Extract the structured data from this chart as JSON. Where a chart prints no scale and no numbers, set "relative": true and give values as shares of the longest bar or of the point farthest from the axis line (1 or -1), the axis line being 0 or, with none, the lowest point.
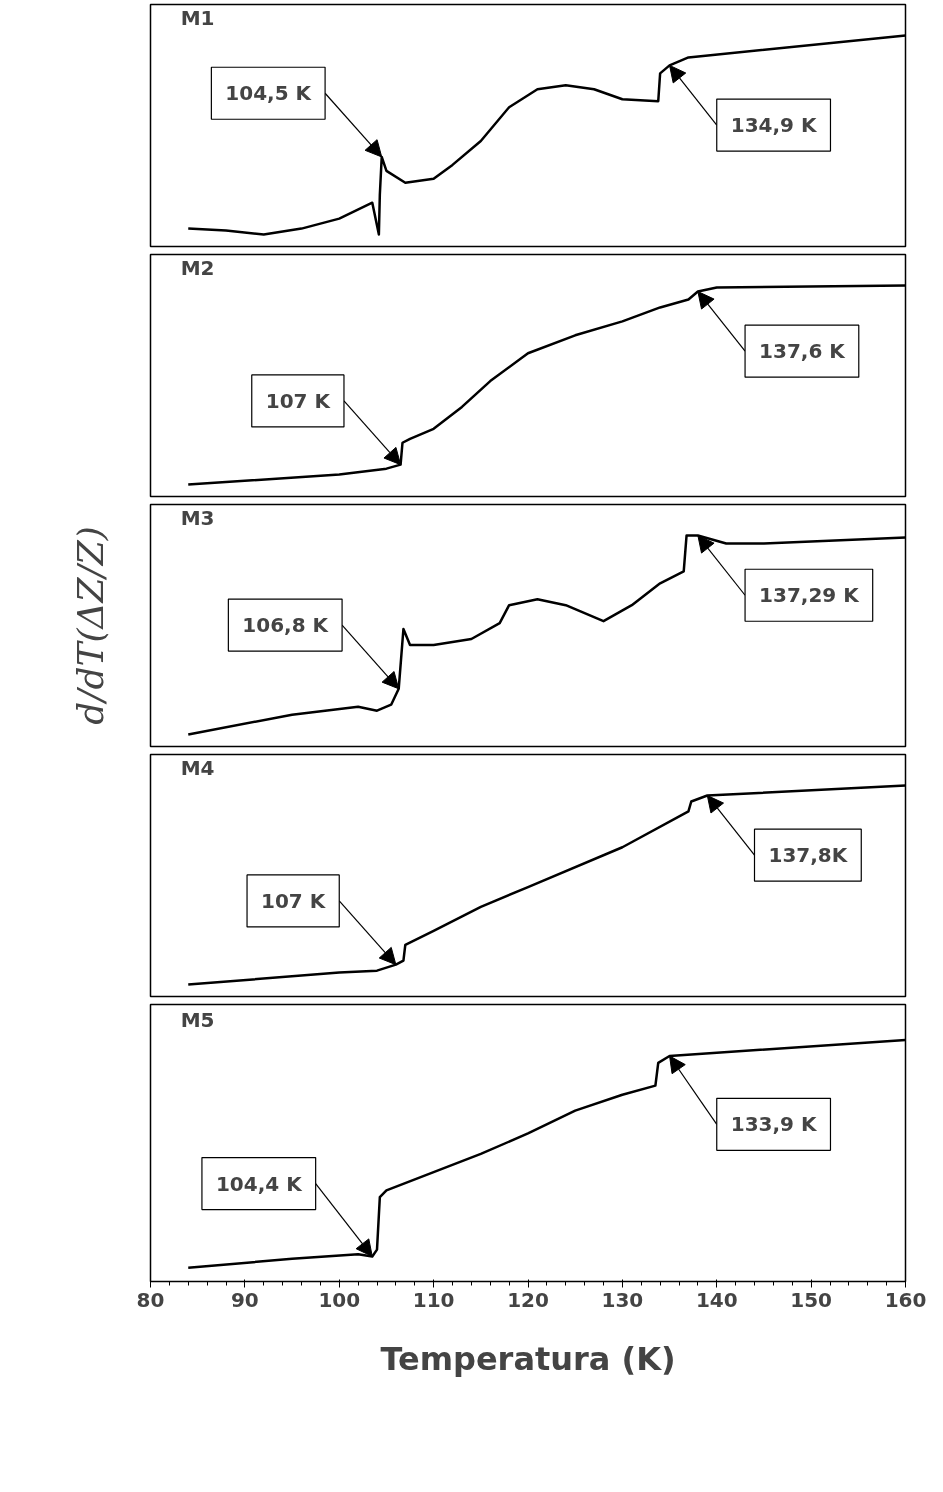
{
  "chart_data": [
    {
      "type": "line",
      "relative": true,
      "xlim": [
        80,
        160
      ],
      "xticks": [
        80,
        90,
        100,
        110,
        120,
        130,
        140,
        150,
        160
      ],
      "tick_labels": false,
      "grid": false,
      "marker": "none",
      "line_style": "solid",
      "x": [
        84,
        88,
        92,
        96,
        100,
        103.5,
        104.2,
        104.3,
        104.5,
        105,
        107,
        110,
        112,
        115,
        118,
        121,
        124,
        127,
        130,
        133.8,
        134,
        135,
        137,
        160
      ],
      "series": [
        {
          "color": "#000000",
          "values": [
            0.03,
            0.02,
            0,
            0.03,
            0.08,
            0.16,
            0,
            0.2,
            0.39,
            0.32,
            0.26,
            0.28,
            0.35,
            0.47,
            0.64,
            0.73,
            0.75,
            0.73,
            0.68,
            0.67,
            0.81,
            0.85,
            0.89,
            1
          ]
        }
      ],
      "annotations": [
        "M1",
        {
          "text": "104,5 K",
          "x": 104.5,
          "y": 0.39
        },
        {
          "text": "134,9 K",
          "x": 135,
          "y": 0.85
        }
      ]
    },
    {
      "type": "line",
      "relative": true,
      "xlim": [
        80,
        160
      ],
      "xticks": [
        80,
        90,
        100,
        110,
        120,
        130,
        140,
        150,
        160
      ],
      "tick_labels": false,
      "grid": false,
      "marker": "none",
      "line_style": "solid",
      "x": [
        84,
        100,
        105,
        106.5,
        106.7,
        107.5,
        110,
        113,
        116,
        120,
        125,
        130,
        134,
        137,
        138,
        140,
        160
      ],
      "series": [
        {
          "color": "#000000",
          "values": [
            0,
            0.05,
            0.08,
            0.1,
            0.21,
            0.23,
            0.28,
            0.39,
            0.52,
            0.66,
            0.75,
            0.82,
            0.89,
            0.93,
            0.97,
            0.99,
            1
          ]
        }
      ],
      "annotations": [
        "M2",
        {
          "text": "107 K",
          "x": 106.5,
          "y": 0.1
        },
        {
          "text": "137,6 K",
          "x": 138,
          "y": 0.97
        }
      ]
    },
    {
      "type": "line",
      "relative": true,
      "ylabel": "d/dT(ΔZ/Z)",
      "xlim": [
        80,
        160
      ],
      "xticks": [
        80,
        90,
        100,
        110,
        120,
        130,
        140,
        150,
        160
      ],
      "tick_labels": false,
      "grid": false,
      "marker": "none",
      "line_style": "solid",
      "x": [
        84,
        95,
        102,
        104,
        105.5,
        106.3,
        106.8,
        107.5,
        110,
        114,
        117,
        118,
        121,
        124,
        128,
        131,
        134,
        136.5,
        136.8,
        138,
        141,
        145,
        160
      ],
      "series": [
        {
          "color": "#000000",
          "values": [
            0,
            0.1,
            0.14,
            0.12,
            0.15,
            0.23,
            0.53,
            0.45,
            0.45,
            0.48,
            0.56,
            0.65,
            0.68,
            0.65,
            0.57,
            0.65,
            0.76,
            0.82,
            1,
            1,
            0.96,
            0.96,
            0.99
          ]
        }
      ],
      "annotations": [
        "M3",
        {
          "text": "106,8 K",
          "x": 106.3,
          "y": 0.23
        },
        {
          "text": "137,29 K",
          "x": 138,
          "y": 1
        }
      ]
    },
    {
      "type": "line",
      "relative": true,
      "xlim": [
        80,
        160
      ],
      "xticks": [
        80,
        90,
        100,
        110,
        120,
        130,
        140,
        150,
        160
      ],
      "tick_labels": false,
      "grid": false,
      "marker": "none",
      "line_style": "solid",
      "x": [
        84,
        100,
        104,
        106,
        106.8,
        107,
        110,
        115,
        120,
        130,
        137,
        137.3,
        139,
        160
      ],
      "series": [
        {
          "color": "#000000",
          "values": [
            0,
            0.06,
            0.07,
            0.1,
            0.12,
            0.2,
            0.27,
            0.39,
            0.49,
            0.69,
            0.87,
            0.92,
            0.95,
            1
          ]
        }
      ],
      "annotations": [
        "M4",
        {
          "text": "107 K",
          "x": 106,
          "y": 0.1
        },
        {
          "text": "137,8K",
          "x": 139,
          "y": 0.95
        }
      ]
    },
    {
      "type": "line",
      "relative": true,
      "xlabel": "Temperatura (K)",
      "xlim": [
        80,
        160
      ],
      "xticks": [
        80,
        90,
        100,
        110,
        120,
        130,
        140,
        150,
        160
      ],
      "tick_labels": "x",
      "grid": false,
      "marker": "none",
      "line_style": "solid",
      "x": [
        84,
        95,
        102,
        103.5,
        104,
        104.3,
        105,
        110,
        115,
        120,
        125,
        130,
        133.5,
        133.8,
        135,
        160
      ],
      "series": [
        {
          "color": "#000000",
          "values": [
            0,
            0.04,
            0.06,
            0.05,
            0.08,
            0.31,
            0.34,
            0.42,
            0.5,
            0.59,
            0.69,
            0.76,
            0.8,
            0.9,
            0.93,
            1
          ]
        }
      ],
      "annotations": [
        "M5",
        {
          "text": "104,4 K",
          "x": 103.5,
          "y": 0.05
        },
        {
          "text": "133,9 K",
          "x": 135,
          "y": 0.93
        }
      ]
    }
  ]
}
